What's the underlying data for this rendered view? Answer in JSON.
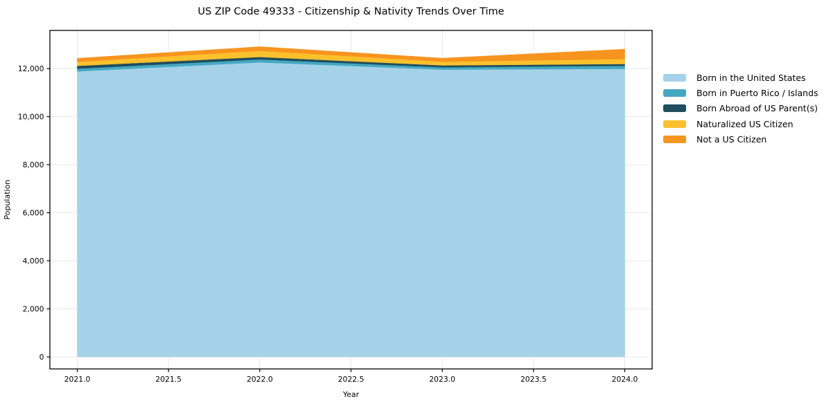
{
  "chart_data": {
    "type": "area",
    "stacked": true,
    "title": "US ZIP Code 49333 - Citizenship & Nativity Trends Over Time",
    "xlabel": "Year",
    "ylabel": "Population",
    "x": [
      2021,
      2022,
      2023,
      2024
    ],
    "series": [
      {
        "name": "Born in the United States",
        "color": "#A5D2E8",
        "values": [
          11885,
          12260,
          11960,
          11990
        ]
      },
      {
        "name": "Born in Puerto Rico / Islands",
        "color": "#45A8C2",
        "values": [
          115,
          125,
          95,
          130
        ]
      },
      {
        "name": "Born Abroad of US Parent(s)",
        "color": "#1F4E5F",
        "values": [
          115,
          100,
          80,
          75
        ]
      },
      {
        "name": "Naturalized US Citizen",
        "color": "#FBC12D",
        "values": [
          170,
          260,
          155,
          205
        ]
      },
      {
        "name": "Not a US Citizen",
        "color": "#F7941E",
        "values": [
          145,
          170,
          145,
          410
        ]
      }
    ],
    "x_ticks": [
      2021.0,
      2021.5,
      2022.0,
      2022.5,
      2023.0,
      2023.5,
      2024.0
    ],
    "x_tick_labels": [
      "2021.0",
      "2021.5",
      "2022.0",
      "2022.5",
      "2023.0",
      "2023.5",
      "2024.0"
    ],
    "y_ticks": [
      0,
      2000,
      4000,
      6000,
      8000,
      10000,
      12000
    ],
    "y_tick_labels": [
      "0",
      "2,000",
      "4,000",
      "6,000",
      "8,000",
      "10,000",
      "12,000"
    ],
    "xlim": [
      2020.85,
      2024.15
    ],
    "ylim": [
      -500,
      13590
    ],
    "grid": true,
    "legend_position": "right-outside"
  }
}
